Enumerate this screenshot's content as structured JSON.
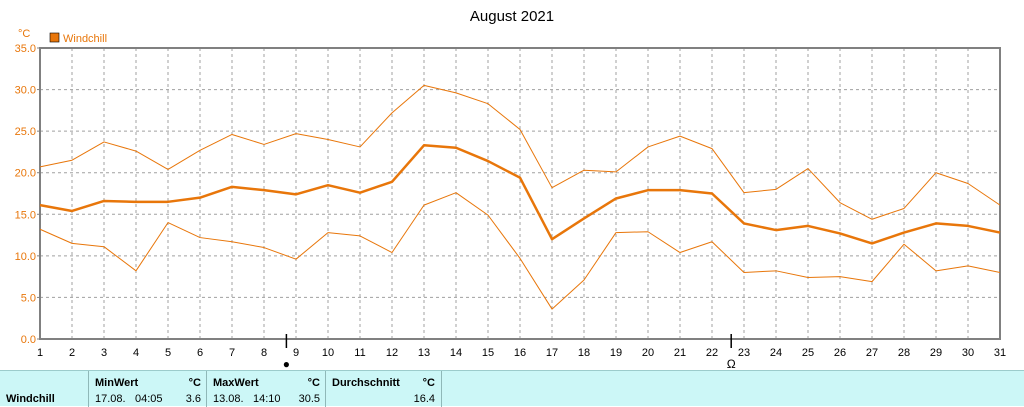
{
  "chart_data": {
    "type": "line",
    "title": "August 2021",
    "unit": "°C",
    "legend": "Windchill",
    "x": [
      1,
      2,
      3,
      4,
      5,
      6,
      7,
      8,
      9,
      10,
      11,
      12,
      13,
      14,
      15,
      16,
      17,
      18,
      19,
      20,
      21,
      22,
      23,
      24,
      25,
      26,
      27,
      28,
      29,
      30,
      31
    ],
    "ylim": [
      0,
      35
    ],
    "yticks": [
      "0.0",
      "5.0",
      "10.0",
      "15.0",
      "20.0",
      "25.0",
      "30.0",
      "35.0"
    ],
    "grid": true,
    "series": [
      {
        "role": "max",
        "values": [
          20.7,
          21.5,
          23.7,
          22.6,
          20.4,
          22.7,
          24.6,
          23.4,
          24.7,
          24.0,
          23.1,
          27.2,
          30.5,
          29.6,
          28.3,
          25.2,
          18.2,
          20.3,
          20.1,
          23.1,
          24.4,
          22.9,
          17.6,
          18.0,
          20.5,
          16.4,
          14.4,
          15.7,
          20.0,
          18.7,
          16.1
        ]
      },
      {
        "role": "mean",
        "values": [
          16.1,
          15.4,
          16.6,
          16.5,
          16.5,
          17.0,
          18.3,
          17.9,
          17.4,
          18.5,
          17.6,
          18.9,
          23.3,
          23.0,
          21.4,
          19.4,
          12.0,
          14.5,
          16.9,
          17.9,
          17.9,
          17.5,
          13.9,
          13.1,
          13.6,
          12.7,
          11.5,
          12.8,
          13.9,
          13.6,
          12.8
        ]
      },
      {
        "role": "min",
        "values": [
          13.2,
          11.5,
          11.1,
          8.2,
          14.0,
          12.2,
          11.7,
          11.0,
          9.6,
          12.8,
          12.4,
          10.4,
          16.1,
          17.6,
          14.9,
          9.7,
          3.6,
          7.1,
          12.8,
          12.9,
          10.4,
          11.7,
          8.0,
          8.2,
          7.4,
          7.5,
          6.9,
          11.4,
          8.2,
          8.8,
          8.0
        ]
      }
    ],
    "moon_marks": [
      {
        "day": 8.7,
        "symbol": "●"
      },
      {
        "day": 22.6,
        "symbol": "Ω"
      }
    ],
    "colors": {
      "line": "#e8760a",
      "axis": "#808080",
      "grid": "#a0a0a0"
    }
  },
  "footer": {
    "label": "Windchill",
    "min_head": "MinWert",
    "min_unit": "°C",
    "min_date": "17.08.",
    "min_time": "04:05",
    "min_val": "3.6",
    "max_head": "MaxWert",
    "max_unit": "°C",
    "max_date": "13.08.",
    "max_time": "14:10",
    "max_val": "30.5",
    "avg_head": "Durchschnitt",
    "avg_unit": "°C",
    "avg_val": "16.4"
  }
}
